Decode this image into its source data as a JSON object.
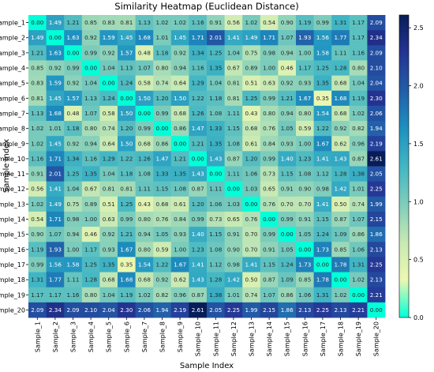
{
  "chart_data": {
    "type": "heatmap",
    "title": "Similarity Heatmap (Euclidean Distance)",
    "xlabel": "Sample Index",
    "ylabel": "Sample Index",
    "categories": [
      "Sample_1",
      "Sample_2",
      "Sample_3",
      "Sample_4",
      "Sample_5",
      "Sample_6",
      "Sample_7",
      "Sample_8",
      "Sample_9",
      "Sample_10",
      "Sample_11",
      "Sample_12",
      "Sample_13",
      "Sample_14",
      "Sample_15",
      "Sample_16",
      "Sample_17",
      "Sample_18",
      "Sample_19",
      "Sample_20"
    ],
    "values": [
      [
        0.0,
        1.49,
        1.21,
        0.85,
        0.83,
        0.81,
        1.13,
        1.02,
        1.02,
        1.16,
        0.91,
        0.56,
        1.02,
        0.54,
        0.9,
        1.19,
        0.99,
        1.31,
        1.17,
        2.09
      ],
      [
        1.49,
        0.0,
        1.63,
        0.92,
        1.59,
        1.45,
        1.68,
        1.01,
        1.45,
        1.71,
        2.01,
        1.41,
        1.49,
        1.71,
        1.07,
        1.93,
        1.56,
        1.77,
        1.17,
        2.34
      ],
      [
        1.21,
        1.63,
        0.0,
        0.99,
        0.92,
        1.57,
        0.48,
        1.18,
        0.92,
        1.34,
        1.25,
        1.04,
        0.75,
        0.98,
        0.94,
        1.0,
        1.58,
        1.11,
        1.16,
        2.09
      ],
      [
        0.85,
        0.92,
        0.99,
        0.0,
        1.04,
        1.13,
        1.07,
        0.8,
        0.94,
        1.16,
        1.35,
        0.67,
        0.89,
        1.0,
        0.46,
        1.17,
        1.25,
        1.28,
        0.8,
        2.1
      ],
      [
        0.83,
        1.59,
        0.92,
        1.04,
        0.0,
        1.24,
        0.58,
        0.74,
        0.64,
        1.29,
        1.04,
        0.81,
        0.51,
        0.63,
        0.92,
        0.93,
        1.35,
        0.68,
        1.04,
        2.04
      ],
      [
        0.81,
        1.45,
        1.57,
        1.13,
        1.24,
        0.0,
        1.5,
        1.2,
        1.5,
        1.22,
        1.18,
        0.81,
        1.25,
        0.99,
        1.21,
        1.67,
        0.35,
        1.68,
        1.19,
        2.3
      ],
      [
        1.13,
        1.68,
        0.48,
        1.07,
        0.58,
        1.5,
        0.0,
        0.99,
        0.68,
        1.26,
        1.08,
        1.11,
        0.43,
        0.8,
        0.94,
        0.8,
        1.54,
        0.68,
        1.02,
        2.06
      ],
      [
        1.02,
        1.01,
        1.18,
        0.8,
        0.74,
        1.2,
        0.99,
        0.0,
        0.86,
        1.47,
        1.33,
        1.15,
        0.68,
        0.76,
        1.05,
        0.59,
        1.22,
        0.92,
        0.82,
        1.94
      ],
      [
        1.02,
        1.45,
        0.92,
        0.94,
        0.64,
        1.5,
        0.68,
        0.86,
        0.0,
        1.21,
        1.35,
        1.08,
        0.61,
        0.84,
        0.93,
        1.0,
        1.67,
        0.62,
        0.96,
        2.19
      ],
      [
        1.16,
        1.71,
        1.34,
        1.16,
        1.29,
        1.22,
        1.26,
        1.47,
        1.21,
        0.0,
        1.43,
        0.87,
        1.2,
        0.99,
        1.4,
        1.23,
        1.41,
        1.43,
        0.87,
        2.61
      ],
      [
        0.91,
        2.01,
        1.25,
        1.35,
        1.04,
        1.18,
        1.08,
        1.33,
        1.35,
        1.43,
        0.0,
        1.11,
        1.06,
        0.73,
        1.15,
        1.08,
        1.12,
        1.28,
        1.38,
        2.05
      ],
      [
        0.56,
        1.41,
        1.04,
        0.67,
        0.81,
        0.81,
        1.11,
        1.15,
        1.08,
        0.87,
        1.11,
        0.0,
        1.03,
        0.65,
        0.91,
        0.9,
        0.98,
        1.42,
        1.01,
        2.25
      ],
      [
        1.02,
        1.49,
        0.75,
        0.89,
        0.51,
        1.25,
        0.43,
        0.68,
        0.61,
        1.2,
        1.06,
        1.03,
        0.0,
        0.76,
        0.7,
        0.7,
        1.41,
        0.5,
        0.74,
        1.99
      ],
      [
        0.54,
        1.71,
        0.98,
        1.0,
        0.63,
        0.99,
        0.8,
        0.76,
        0.84,
        0.99,
        0.73,
        0.65,
        0.76,
        0.0,
        0.99,
        0.91,
        1.15,
        0.87,
        1.07,
        2.15
      ],
      [
        0.9,
        1.07,
        0.94,
        0.46,
        0.92,
        1.21,
        0.94,
        1.05,
        0.93,
        1.4,
        1.15,
        0.91,
        0.7,
        0.99,
        0.0,
        1.05,
        1.24,
        1.09,
        0.86,
        1.86
      ],
      [
        1.19,
        1.93,
        1.0,
        1.17,
        0.93,
        1.67,
        0.8,
        0.59,
        1.0,
        1.23,
        1.08,
        0.9,
        0.7,
        0.91,
        1.05,
        0.0,
        1.73,
        0.85,
        1.06,
        2.13
      ],
      [
        0.99,
        1.56,
        1.58,
        1.25,
        1.35,
        0.35,
        1.54,
        1.22,
        1.67,
        1.41,
        1.12,
        0.98,
        1.41,
        1.15,
        1.24,
        1.73,
        0.0,
        1.78,
        1.31,
        2.25
      ],
      [
        1.31,
        1.77,
        1.11,
        1.28,
        0.68,
        1.68,
        0.68,
        0.92,
        0.62,
        1.43,
        1.28,
        1.42,
        0.5,
        0.87,
        1.09,
        0.85,
        1.78,
        0.0,
        1.02,
        2.13
      ],
      [
        1.17,
        1.17,
        1.16,
        0.8,
        1.04,
        1.19,
        1.02,
        0.82,
        0.96,
        0.87,
        1.38,
        1.01,
        0.74,
        1.07,
        0.86,
        1.06,
        1.31,
        1.02,
        0.0,
        2.21
      ],
      [
        2.09,
        2.34,
        2.09,
        2.1,
        2.04,
        2.3,
        2.06,
        1.94,
        2.19,
        2.61,
        2.05,
        2.25,
        1.99,
        2.15,
        1.86,
        2.13,
        2.25,
        2.13,
        2.21,
        0.0
      ]
    ],
    "vmin": 0.0,
    "vmax": 2.61,
    "colormap": "YlGnBu",
    "colorbar_ticks": [
      "0.0",
      "0.5",
      "1.0",
      "1.5",
      "2.0",
      "2.5"
    ],
    "colorbar_tick_values": [
      0.0,
      0.5,
      1.0,
      1.5,
      2.0,
      2.5
    ],
    "annotation_format": "0.00",
    "grid": false
  }
}
